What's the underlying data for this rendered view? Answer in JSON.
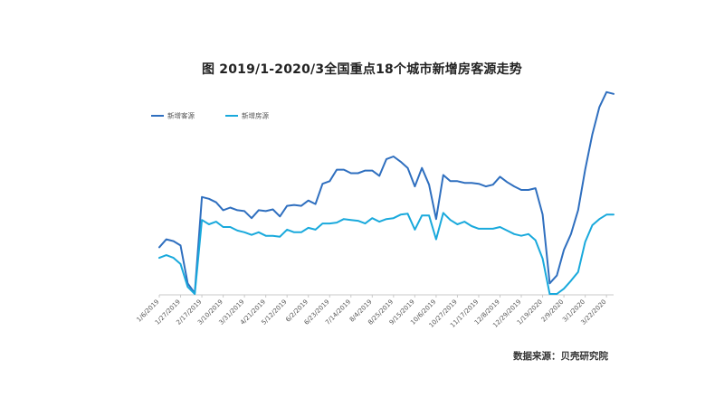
{
  "chart_data": {
    "type": "line",
    "title": "图 2019/1-2020/3全国重点18个城市新增房客源走势",
    "source": "数据来源：贝壳研究院",
    "legend_position": "top-left",
    "grid": false,
    "y_axis_visible": false,
    "colors": {
      "new_demand": "#2f6fbf",
      "new_supply": "#19a9dc",
      "axis": "#c8c8c8"
    },
    "x_ticks": [
      "1/6/2019",
      "1/27/2019",
      "2/17/2019",
      "3/10/2019",
      "3/31/2019",
      "4/21/2019",
      "5/12/2019",
      "6/2/2019",
      "6/23/2019",
      "7/14/2019",
      "8/4/2019",
      "8/25/2019",
      "9/15/2019",
      "10/6/2019",
      "10/27/2019",
      "11/17/2019",
      "12/8/2019",
      "12/29/2019",
      "1/19/2020",
      "2/9/2020",
      "3/1/2020",
      "3/22/2020"
    ],
    "series": [
      {
        "name": "新增客源",
        "color": "#2f6fbf",
        "values": [
          27.0,
          31.5,
          30.5,
          28.0,
          6.5,
          1.0,
          55.5,
          54.5,
          52.5,
          48.0,
          49.5,
          48.0,
          47.5,
          43.5,
          48.0,
          47.5,
          48.5,
          44.5,
          50.5,
          51.0,
          50.5,
          53.5,
          51.5,
          63.0,
          64.5,
          71.0,
          71.0,
          69.0,
          69.0,
          70.5,
          70.5,
          67.5,
          77.0,
          78.5,
          75.5,
          72.0,
          61.5,
          72.0,
          62.5,
          43.0,
          68.0,
          64.5,
          64.5,
          63.5,
          63.5,
          63.0,
          61.5,
          62.5,
          67.0,
          64.0,
          61.5,
          59.5,
          59.5,
          60.5,
          45.5,
          6.5,
          11.0,
          25.5,
          34.5,
          48.0,
          71.0,
          91.0,
          106.5,
          115.0,
          114.0
        ]
      },
      {
        "name": "新增房源",
        "color": "#19a9dc",
        "values": [
          21.0,
          22.5,
          21.0,
          17.5,
          4.5,
          0.5,
          42.5,
          40.0,
          41.5,
          38.5,
          38.5,
          36.5,
          35.5,
          34.0,
          35.5,
          33.5,
          33.5,
          33.0,
          37.0,
          35.5,
          35.5,
          38.0,
          37.0,
          40.5,
          40.5,
          41.0,
          43.0,
          42.5,
          42.0,
          40.5,
          43.5,
          41.5,
          43.0,
          43.5,
          45.5,
          46.0,
          37.0,
          45.0,
          45.0,
          31.5,
          46.5,
          42.5,
          40.0,
          41.5,
          39.0,
          37.5,
          37.5,
          37.5,
          38.5,
          36.5,
          34.5,
          33.5,
          34.5,
          31.0,
          20.5,
          0.5,
          0.5,
          3.5,
          8.0,
          13.0,
          30.0,
          39.5,
          43.0,
          45.5,
          45.5
        ]
      }
    ]
  }
}
